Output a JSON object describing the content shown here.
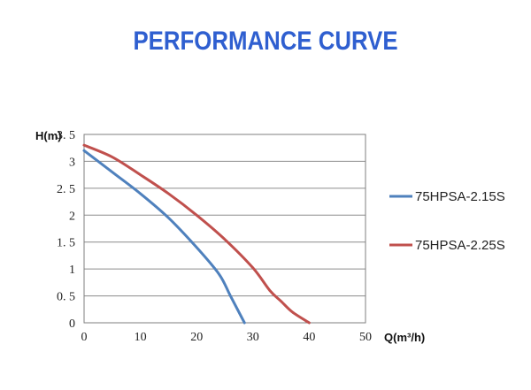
{
  "title": "PERFORMANCE CURVE",
  "title_color": "#2f5fd0",
  "chart_data": {
    "type": "line",
    "title": "PERFORMANCE CURVE",
    "xlabel": "Q(m³/h)",
    "ylabel": "H(m)",
    "xlim": [
      0,
      50
    ],
    "ylim": [
      0,
      3.5
    ],
    "xticks": [
      0,
      10,
      20,
      30,
      40,
      50
    ],
    "yticks": [
      0,
      0.5,
      1,
      1.5,
      2,
      2.5,
      3,
      3.5
    ],
    "xtick_labels": [
      "0",
      "10",
      "20",
      "30",
      "40",
      "50"
    ],
    "ytick_labels": [
      "0",
      "0. 5",
      "1",
      "1. 5",
      "2",
      "2. 5",
      "3",
      "3. 5"
    ],
    "grid": true,
    "legend_position": "right",
    "series": [
      {
        "name": "75HPSA-2.15S",
        "color": "#4f81bd",
        "x": [
          0,
          5,
          10,
          15,
          20,
          24,
          26,
          28.5
        ],
        "y": [
          3.2,
          2.8,
          2.4,
          1.95,
          1.4,
          0.9,
          0.5,
          0
        ]
      },
      {
        "name": "75HPSA-2.25S",
        "color": "#c0504d",
        "x": [
          0,
          5,
          10,
          15,
          20,
          25,
          30,
          33,
          35,
          37,
          40
        ],
        "y": [
          3.3,
          3.08,
          2.75,
          2.4,
          2.0,
          1.55,
          1.02,
          0.6,
          0.4,
          0.2,
          0
        ]
      }
    ]
  }
}
